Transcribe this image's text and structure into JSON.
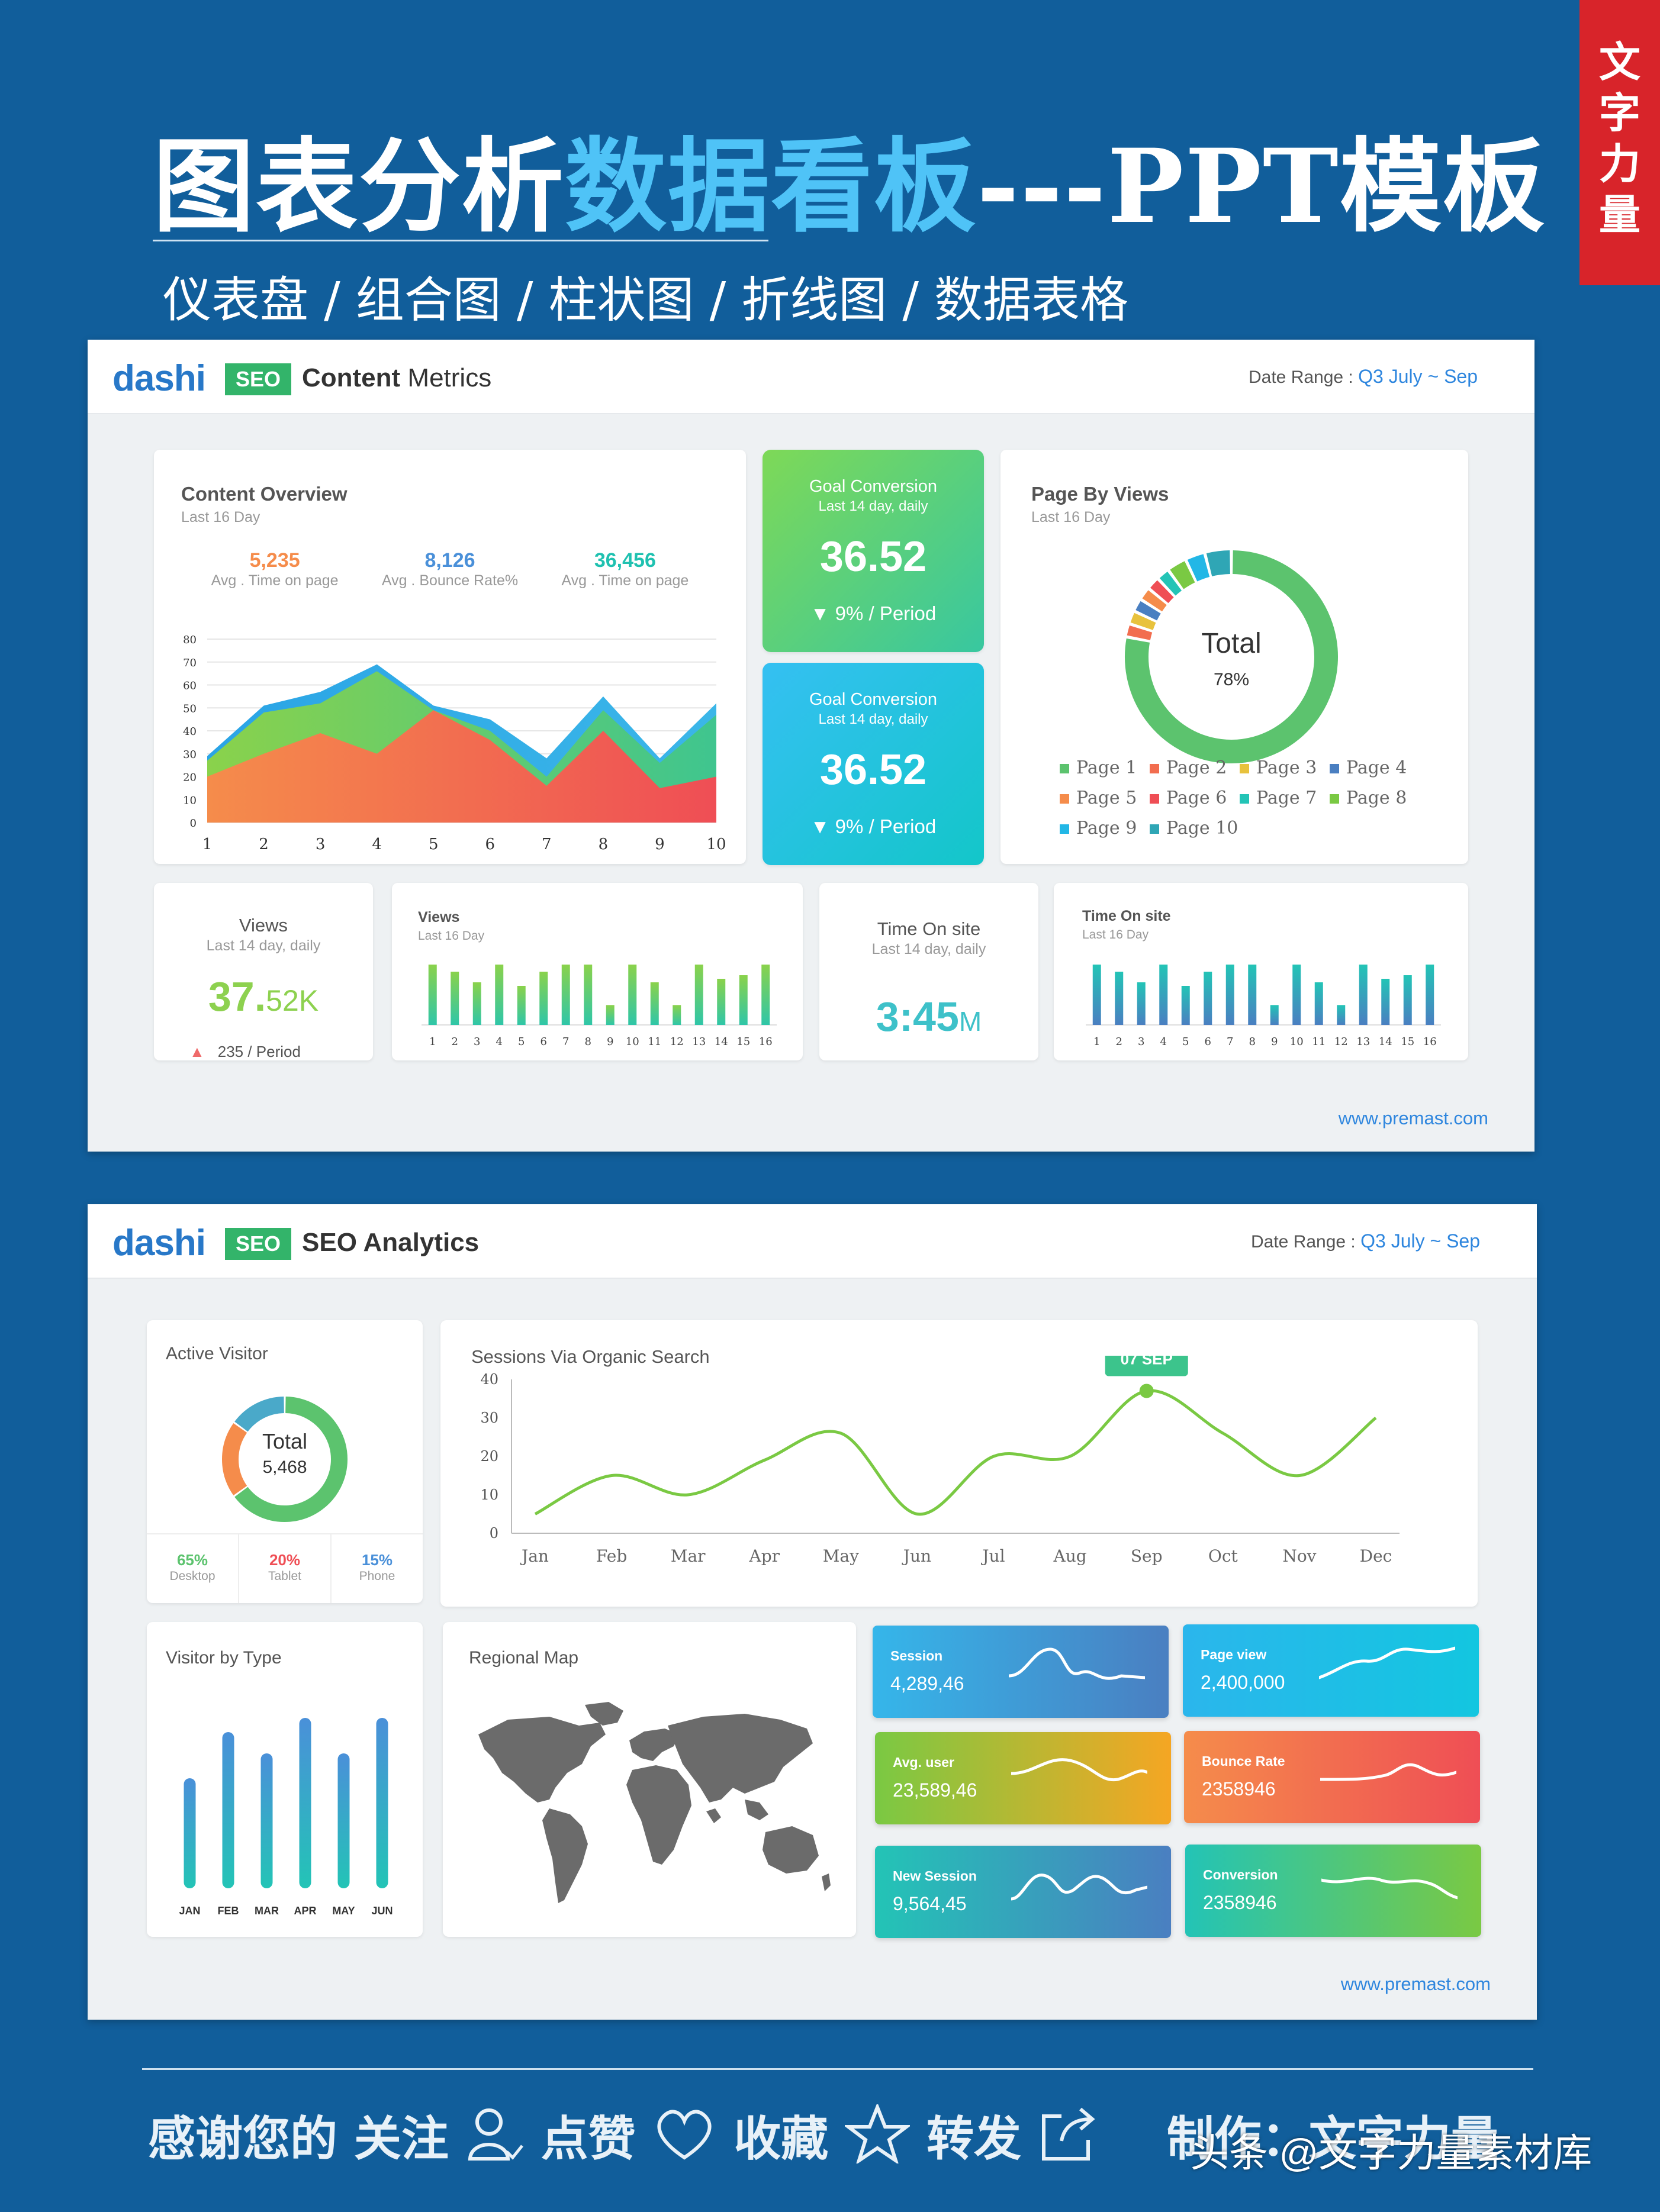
{
  "header": {
    "title_part1": "图表分析",
    "title_part2": "数据看板",
    "title_part3": "---PPT模板",
    "subtitle": "仪表盘 / 组合图 / 柱状图 / 折线图 / 数据表格",
    "badge": [
      "文",
      "字",
      "力",
      "量"
    ]
  },
  "brand": {
    "logo_text": "dashi",
    "seo": "SEO"
  },
  "panel1": {
    "title_bold": "Content",
    "title_rest": " Metrics",
    "date_label": "Date Range : ",
    "date_q": "Q3",
    "date_range": " July ~ Sep",
    "overview": {
      "title": "Content Overview",
      "sub": "Last 16 Day",
      "kpis": [
        {
          "value": "5,235",
          "label": "Avg . Time on page",
          "color": "#f58c4b"
        },
        {
          "value": "8,126",
          "label": "Avg . Bounce Rate%",
          "color": "#4a90d9"
        },
        {
          "value": "36,456",
          "label": "Avg . Time on page",
          "color": "#1fc1b0"
        }
      ]
    },
    "goal1": {
      "title": "Goal Conversion",
      "sub": "Last 14 day, daily",
      "value": "36.52",
      "change": "▼ 9%  / Period"
    },
    "goal2": {
      "title": "Goal Conversion",
      "sub": "Last 14 day, daily",
      "value": "36.52",
      "change": "▼ 9%  / Period"
    },
    "pageviews": {
      "title": "Page By Views",
      "sub": "Last 16 Day",
      "center_title": "Total",
      "center_value": "78%",
      "legend": [
        "Page 1",
        "Page 2",
        "Page 3",
        "Page 4",
        "Page 5",
        "Page 6",
        "Page 7",
        "Page 8",
        "Page 9",
        "Page 10"
      ],
      "legend_colors": [
        "#5cc36e",
        "#f26d4f",
        "#e8c23d",
        "#4a7fc1",
        "#f58c4b",
        "#ef4e55",
        "#23c4b6",
        "#7ac943",
        "#22b7e6",
        "#2fa6b5"
      ]
    },
    "views": {
      "title": "Views",
      "sub": "Last 14 day, daily",
      "value_main": "37.",
      "value_small": "52K",
      "change": "235  / Period"
    },
    "views_bars": {
      "title": "Views",
      "sub": "Last 16 Day"
    },
    "time": {
      "title": "Time On site",
      "sub": "Last 14 day, daily",
      "value_main": "3:45",
      "value_small": "M"
    },
    "time_bars": {
      "title": "Time On site",
      "sub": "Last 16 Day"
    },
    "url": "www.premast.com"
  },
  "panel2": {
    "title": "SEO Analytics",
    "date_label": "Date Range : ",
    "date_q": "Q3",
    "date_range": " July ~ Sep",
    "active": {
      "title": "Active Visitor",
      "center_title": "Total",
      "center_value": "5,468",
      "split": [
        {
          "pct": "65%",
          "label": "Desktop",
          "color": "#5cc36e"
        },
        {
          "pct": "20%",
          "label": "Tablet",
          "color": "#ef4e55"
        },
        {
          "pct": "15%",
          "label": "Phone",
          "color": "#4a90d9"
        }
      ]
    },
    "sessions": {
      "title": "Sessions Via Organic Search",
      "callout": "07 SEP"
    },
    "visitor_type": {
      "title": "Visitor by Type"
    },
    "map": {
      "title": "Regional Map"
    },
    "tiles": [
      {
        "label": "Session",
        "value": "4,289,46"
      },
      {
        "label": "Page view",
        "value": "2,400,000"
      },
      {
        "label": "Avg. user",
        "value": "23,589,46"
      },
      {
        "label": "Bounce Rate",
        "value": "2358946"
      },
      {
        "label": "New Session",
        "value": "9,564,45"
      },
      {
        "label": "Conversion",
        "value": "2358946"
      }
    ],
    "url": "www.premast.com"
  },
  "footer": {
    "thanks": "感谢您的  关注",
    "like": " 点赞",
    "fav": " 收藏",
    "share": " 转发",
    "maker": "制作：文字力量",
    "watermark": "头条 @文字力量素材库"
  },
  "chart_data": [
    {
      "type": "area",
      "x": [
        1,
        2,
        3,
        4,
        5,
        6,
        7,
        8,
        9,
        10
      ],
      "ylim": [
        0,
        80
      ],
      "yticks": [
        0,
        10,
        20,
        30,
        40,
        50,
        60,
        70,
        80
      ],
      "series": [
        {
          "values": [
            29,
            51,
            57,
            69,
            51,
            45,
            28,
            55,
            28,
            52
          ]
        },
        {
          "values": [
            27,
            48,
            52,
            66,
            49,
            40,
            20,
            49,
            26,
            47
          ]
        },
        {
          "values": [
            20,
            30,
            39,
            30,
            49,
            36,
            16,
            40,
            15,
            20
          ]
        }
      ]
    },
    {
      "type": "pie",
      "categories": [
        "Page 1",
        "Page 2",
        "Page 3",
        "Page 4",
        "Page 5",
        "Page 6",
        "Page 7",
        "Page 8",
        "Page 9",
        "Page 10"
      ],
      "values": [
        78,
        2,
        2,
        2,
        2,
        2,
        2,
        3,
        3,
        4
      ]
    },
    {
      "type": "bar",
      "categories": [
        "1",
        "2",
        "3",
        "4",
        "5",
        "6",
        "7",
        "8",
        "9",
        "10",
        "11",
        "12",
        "13",
        "14",
        "15",
        "16"
      ],
      "values": [
        85,
        75,
        60,
        85,
        55,
        75,
        85,
        85,
        28,
        85,
        60,
        28,
        85,
        65,
        70,
        85
      ]
    },
    {
      "type": "bar",
      "categories": [
        "1",
        "2",
        "3",
        "4",
        "5",
        "6",
        "7",
        "8",
        "9",
        "10",
        "11",
        "12",
        "13",
        "14",
        "15",
        "16"
      ],
      "values": [
        85,
        75,
        60,
        85,
        55,
        75,
        85,
        85,
        28,
        85,
        60,
        28,
        85,
        65,
        70,
        85
      ]
    },
    {
      "type": "pie",
      "categories": [
        "Desktop",
        "Tablet",
        "Phone"
      ],
      "values": [
        65,
        20,
        15
      ]
    },
    {
      "type": "line",
      "categories": [
        "Jan",
        "Feb",
        "Mar",
        "Apr",
        "May",
        "Jun",
        "Jul",
        "Aug",
        "Sep",
        "Oct",
        "Nov",
        "Dec"
      ],
      "ylim": [
        0,
        40
      ],
      "yticks": [
        0,
        10,
        20,
        30,
        40
      ],
      "values": [
        5,
        15,
        10,
        19,
        26,
        5,
        20,
        20,
        37,
        26,
        15,
        30
      ]
    },
    {
      "type": "bar",
      "categories": [
        "JAN",
        "FEB",
        "MAR",
        "APR",
        "MAY",
        "JUN"
      ],
      "values": [
        62,
        88,
        76,
        96,
        76,
        96
      ]
    }
  ]
}
